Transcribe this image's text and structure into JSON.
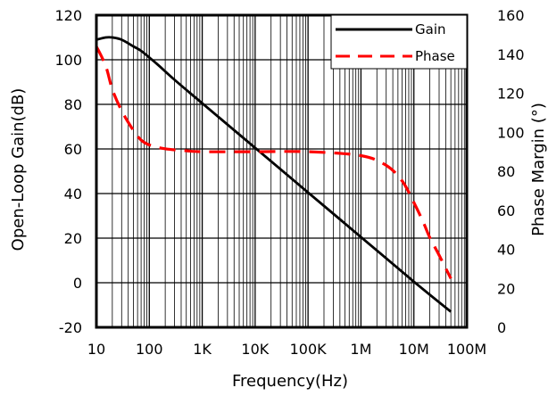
{
  "chart_data": {
    "type": "line",
    "xlabel": "Frequency(Hz)",
    "ylabel_left": "Open-Loop Gain(dB)",
    "ylabel_right": "Phase Margin (°)",
    "x_scale": "log",
    "xlim": [
      10,
      100000000
    ],
    "ylim_left": [
      -20,
      120
    ],
    "ylim_right": [
      0,
      160
    ],
    "x_ticks": [
      {
        "value": 10,
        "label": "10"
      },
      {
        "value": 100,
        "label": "100"
      },
      {
        "value": 1000,
        "label": "1K"
      },
      {
        "value": 10000,
        "label": "10K"
      },
      {
        "value": 100000,
        "label": "100K"
      },
      {
        "value": 1000000,
        "label": "1M"
      },
      {
        "value": 10000000,
        "label": "10M"
      },
      {
        "value": 100000000,
        "label": "100M"
      }
    ],
    "y_ticks_left": [
      "-20",
      "0",
      "20",
      "40",
      "60",
      "80",
      "100",
      "120"
    ],
    "y_ticks_right": [
      "0",
      "20",
      "40",
      "60",
      "80",
      "100",
      "120",
      "140",
      "160"
    ],
    "grid": true,
    "legend_position": "top-right",
    "series": [
      {
        "name": "Gain",
        "axis": "left",
        "color": "#000000",
        "style": "solid",
        "points": [
          [
            10,
            109
          ],
          [
            15,
            110
          ],
          [
            20,
            110
          ],
          [
            30,
            109
          ],
          [
            50,
            106
          ],
          [
            70,
            104
          ],
          [
            100,
            101
          ],
          [
            150,
            97.5
          ],
          [
            300,
            91
          ],
          [
            1000,
            80.5
          ],
          [
            10000,
            60.5
          ],
          [
            100000,
            40.5
          ],
          [
            1000000,
            20.5
          ],
          [
            10000000,
            0.5
          ],
          [
            50000000,
            -13
          ]
        ]
      },
      {
        "name": "Phase",
        "axis": "right",
        "color": "#ff0000",
        "style": "dashed",
        "points": [
          [
            10,
            144
          ],
          [
            15,
            134
          ],
          [
            20,
            122
          ],
          [
            30,
            111
          ],
          [
            50,
            101
          ],
          [
            70,
            96
          ],
          [
            100,
            93.5
          ],
          [
            200,
            91.5
          ],
          [
            500,
            90.5
          ],
          [
            1000,
            90
          ],
          [
            10000,
            90
          ],
          [
            100000,
            90
          ],
          [
            1000000,
            88
          ],
          [
            3000000,
            83
          ],
          [
            6000000,
            75
          ],
          [
            10000000,
            64
          ],
          [
            15000000,
            54
          ],
          [
            20000000,
            46
          ],
          [
            30000000,
            37
          ],
          [
            50000000,
            25
          ]
        ]
      }
    ]
  }
}
